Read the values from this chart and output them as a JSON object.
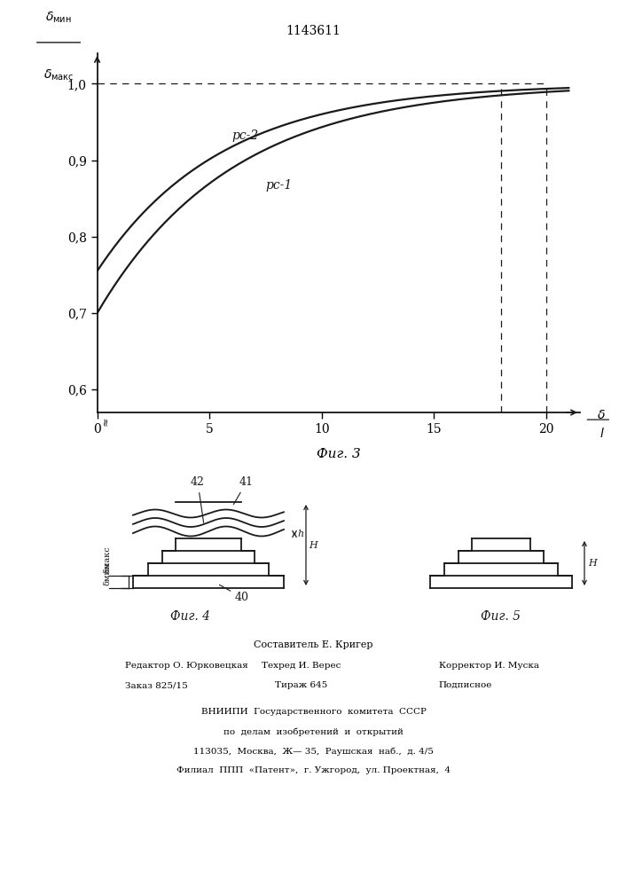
{
  "title": "1143611",
  "fig3_title": "Фиг. 3",
  "fig4_title": "Фиг. 4",
  "fig5_title": "Фиг. 5",
  "curve1_label": "рс-2",
  "curve2_label": "рс-1",
  "x_ticks": [
    0,
    5,
    10,
    15,
    20
  ],
  "y_ticks": [
    0.6,
    0.7,
    0.8,
    0.9,
    1.0
  ],
  "xlim": [
    0,
    21.5
  ],
  "ylim": [
    0.57,
    1.04
  ],
  "line_color": "#1a1a1a",
  "footer_sestavitel": "Составитель Е. Кригер",
  "footer_redaktor": "Редактор О. Юрковецкая",
  "footer_tehred": "Техред И. Верес",
  "footer_korrektor": "Корректор И. Муска",
  "footer_zakaz": "Заказ 825/15",
  "footer_tirazh": "Тираж 645",
  "footer_podpisnoe": "Подписное",
  "footer_vniiipi": "ВНИИПИ  Государственного  комитета  СССР",
  "footer_po_delam": "по  делам  изобретений  и  открытий",
  "footer_addr": "113035,  Москва,  Ж— 35,  Раушская  наб.,  д. 4/5",
  "footer_filial": "Филиал  ППП  «Патент»,  г. Ужгород,  ул. Проектная,  4"
}
